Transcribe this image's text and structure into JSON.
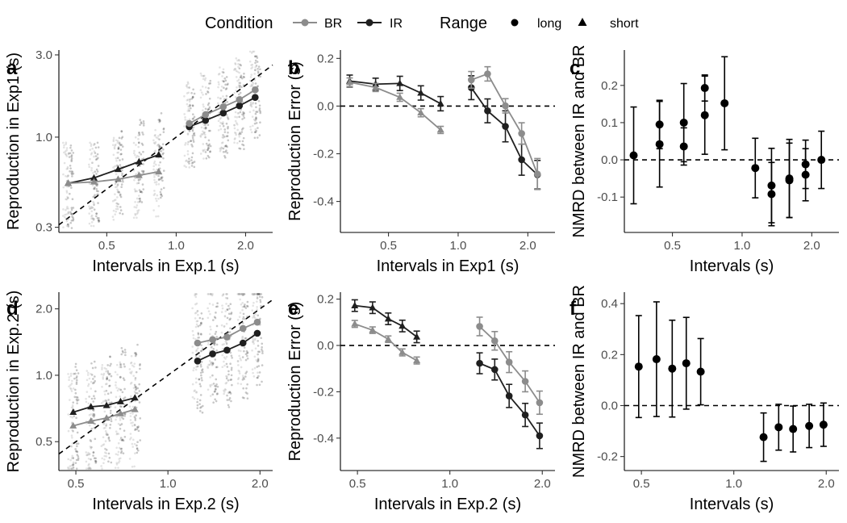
{
  "legend": {
    "condition_title": "Condition",
    "condition_items": [
      {
        "label": "BR",
        "color": "#8c8c8c"
      },
      {
        "label": "IR",
        "color": "#1f1f1f"
      }
    ],
    "range_title": "Range",
    "range_items": [
      {
        "label": "long",
        "shape": "circle"
      },
      {
        "label": "short",
        "shape": "triangle"
      }
    ]
  },
  "colors": {
    "BR": "#8c8c8c",
    "IR": "#1f1f1f",
    "raw": "#b3b3b3"
  },
  "chart_data": [
    {
      "id": "a",
      "letter": "a",
      "type": "scatter",
      "xlabel": "Intervals in Exp.1 (s)",
      "ylabel": "Reproduction in Exp1 (s)",
      "xscale": "log",
      "yscale": "log",
      "xlim": [
        0.31,
        2.62
      ],
      "ylim": [
        0.28,
        3.2
      ],
      "xticks": [
        {
          "v": 0.5,
          "label": "0.5"
        },
        {
          "v": 1.0,
          "label": "1.0"
        },
        {
          "v": 2.0,
          "label": "2.0"
        }
      ],
      "yticks": [
        {
          "v": 0.3,
          "label": "0.3"
        },
        {
          "v": 1.0,
          "label": "1.0"
        },
        {
          "v": 3.0,
          "label": "3.0"
        }
      ],
      "reference_line": "identity",
      "raw_spread": [
        0.55,
        1.75
      ],
      "series": [
        {
          "condition": "IR",
          "range": "short",
          "x": [
            0.34,
            0.44,
            0.56,
            0.69,
            0.84
          ],
          "y": [
            0.54,
            0.58,
            0.65,
            0.72,
            0.79
          ]
        },
        {
          "condition": "BR",
          "range": "short",
          "x": [
            0.34,
            0.44,
            0.56,
            0.69,
            0.84
          ],
          "y": [
            0.54,
            0.55,
            0.57,
            0.6,
            0.63
          ]
        },
        {
          "condition": "IR",
          "range": "long",
          "x": [
            1.14,
            1.34,
            1.6,
            1.88,
            2.2
          ],
          "y": [
            1.15,
            1.25,
            1.38,
            1.52,
            1.7
          ]
        },
        {
          "condition": "BR",
          "range": "long",
          "x": [
            1.14,
            1.34,
            1.6,
            1.88,
            2.2
          ],
          "y": [
            1.2,
            1.35,
            1.5,
            1.65,
            1.88
          ]
        }
      ]
    },
    {
      "id": "b",
      "letter": "b",
      "type": "line",
      "xlabel": "Intervals in Exp1 (s)",
      "ylabel": "Reproduction Error (s)",
      "xscale": "log",
      "yscale": "linear",
      "xlim": [
        0.31,
        2.62
      ],
      "ylim": [
        -0.53,
        0.235
      ],
      "xticks": [
        {
          "v": 0.5,
          "label": "0.5"
        },
        {
          "v": 1.0,
          "label": "1.0"
        },
        {
          "v": 2.0,
          "label": "2.0"
        }
      ],
      "yticks": [
        {
          "v": 0.2,
          "label": "0.2"
        },
        {
          "v": 0.0,
          "label": "0.0"
        },
        {
          "v": -0.2,
          "label": "-0.2"
        },
        {
          "v": -0.4,
          "label": "-0.4"
        }
      ],
      "reference_line": "zero",
      "series": [
        {
          "condition": "IR",
          "range": "short",
          "x": [
            0.34,
            0.44,
            0.56,
            0.69,
            0.84
          ],
          "y": [
            0.105,
            0.092,
            0.095,
            0.055,
            0.01
          ],
          "err": [
            0.025,
            0.025,
            0.03,
            0.03,
            0.03
          ]
        },
        {
          "condition": "BR",
          "range": "short",
          "x": [
            0.34,
            0.44,
            0.56,
            0.69,
            0.84
          ],
          "y": [
            0.1,
            0.078,
            0.037,
            -0.028,
            -0.1
          ],
          "err": [
            0.018,
            0.017,
            0.017,
            0.017,
            0.015
          ]
        },
        {
          "condition": "IR",
          "range": "long",
          "x": [
            1.14,
            1.34,
            1.6,
            1.88,
            2.2
          ],
          "y": [
            0.077,
            -0.02,
            -0.085,
            -0.225,
            -0.288
          ],
          "err": [
            0.05,
            0.05,
            0.065,
            0.065,
            0.06
          ]
        },
        {
          "condition": "BR",
          "range": "long",
          "x": [
            1.14,
            1.34,
            1.6,
            1.88,
            2.2
          ],
          "y": [
            0.11,
            0.135,
            0.001,
            -0.115,
            -0.285
          ],
          "err": [
            0.035,
            0.03,
            0.03,
            0.045,
            0.065
          ]
        }
      ]
    },
    {
      "id": "c",
      "letter": "c",
      "type": "scatter",
      "xlabel": "Intervals (s)",
      "ylabel": "NMRD between IR and BR",
      "xscale": "log",
      "yscale": "linear",
      "xlim": [
        0.31,
        2.62
      ],
      "ylim": [
        -0.195,
        0.295
      ],
      "xticks": [
        {
          "v": 0.5,
          "label": "0.5"
        },
        {
          "v": 1.0,
          "label": "1.0"
        },
        {
          "v": 2.0,
          "label": "2.0"
        }
      ],
      "yticks": [
        {
          "v": 0.2,
          "label": "0.2"
        },
        {
          "v": 0.1,
          "label": "0.1"
        },
        {
          "v": 0.0,
          "label": "0.0"
        },
        {
          "v": -0.1,
          "label": "-0.1"
        }
      ],
      "reference_line": "zero",
      "series": [
        {
          "condition": "NMRD",
          "x": [
            0.34,
            0.44,
            0.44,
            0.56,
            0.56,
            0.69,
            0.69,
            0.84,
            1.14,
            1.34,
            1.34,
            1.6,
            1.6,
            1.88,
            1.88,
            2.2
          ],
          "y": [
            0.012,
            0.095,
            0.042,
            0.1,
            0.036,
            0.193,
            0.12,
            0.152,
            -0.022,
            -0.069,
            -0.092,
            -0.05,
            -0.055,
            -0.012,
            -0.04,
            0.0
          ],
          "err": [
            0.13,
            0.065,
            0.115,
            0.105,
            0.05,
            0.035,
            0.105,
            0.125,
            0.08,
            0.1,
            0.085,
            0.105,
            0.1,
            0.065,
            0.07,
            0.077
          ]
        }
      ]
    },
    {
      "id": "d",
      "letter": "d",
      "type": "scatter",
      "xlabel": "Intervals in Exp.2 (s)",
      "ylabel": "Reproduction in Exp.2 (s)",
      "xscale": "log",
      "yscale": "log",
      "xlim": [
        0.44,
        2.2
      ],
      "ylim": [
        0.37,
        2.38
      ],
      "xticks": [
        {
          "v": 0.5,
          "label": "0.5"
        },
        {
          "v": 1.0,
          "label": "1.0"
        },
        {
          "v": 2.0,
          "label": "2.0"
        }
      ],
      "yticks": [
        {
          "v": 0.5,
          "label": "0.5"
        },
        {
          "v": 1.0,
          "label": "1.0"
        },
        {
          "v": 2.0,
          "label": "2.0"
        }
      ],
      "reference_line": "identity",
      "raw_spread": [
        0.55,
        1.75
      ],
      "series": [
        {
          "condition": "IR",
          "range": "short",
          "x": [
            0.49,
            0.56,
            0.63,
            0.7,
            0.78
          ],
          "y": [
            0.68,
            0.72,
            0.73,
            0.76,
            0.79
          ]
        },
        {
          "condition": "BR",
          "range": "short",
          "x": [
            0.49,
            0.56,
            0.63,
            0.7,
            0.78
          ],
          "y": [
            0.59,
            0.62,
            0.64,
            0.67,
            0.7
          ]
        },
        {
          "condition": "IR",
          "range": "long",
          "x": [
            1.25,
            1.4,
            1.56,
            1.76,
            1.96
          ],
          "y": [
            1.16,
            1.25,
            1.3,
            1.4,
            1.55
          ]
        },
        {
          "condition": "BR",
          "range": "long",
          "x": [
            1.25,
            1.4,
            1.56,
            1.76,
            1.96
          ],
          "y": [
            1.4,
            1.45,
            1.49,
            1.63,
            1.74
          ]
        }
      ]
    },
    {
      "id": "e",
      "letter": "e",
      "type": "line",
      "xlabel": "Intervals in Exp.2 (s)",
      "ylabel": "Reproduction Error (s)",
      "xscale": "log",
      "yscale": "linear",
      "xlim": [
        0.44,
        2.2
      ],
      "ylim": [
        -0.54,
        0.23
      ],
      "xticks": [
        {
          "v": 0.5,
          "label": "0.5"
        },
        {
          "v": 1.0,
          "label": "1.0"
        },
        {
          "v": 2.0,
          "label": "2.0"
        }
      ],
      "yticks": [
        {
          "v": 0.2,
          "label": "0.2"
        },
        {
          "v": 0.0,
          "label": "0.0"
        },
        {
          "v": -0.2,
          "label": "-0.2"
        },
        {
          "v": -0.4,
          "label": "-0.4"
        }
      ],
      "reference_line": "zero",
      "series": [
        {
          "condition": "IR",
          "range": "short",
          "x": [
            0.49,
            0.56,
            0.63,
            0.7,
            0.78
          ],
          "y": [
            0.172,
            0.163,
            0.115,
            0.084,
            0.037
          ],
          "err": [
            0.025,
            0.025,
            0.025,
            0.025,
            0.025
          ]
        },
        {
          "condition": "BR",
          "range": "short",
          "x": [
            0.49,
            0.56,
            0.63,
            0.7,
            0.78
          ],
          "y": [
            0.093,
            0.066,
            0.027,
            -0.03,
            -0.065
          ],
          "err": [
            0.015,
            0.014,
            0.014,
            0.015,
            0.015
          ]
        },
        {
          "condition": "IR",
          "range": "long",
          "x": [
            1.25,
            1.4,
            1.56,
            1.76,
            1.96
          ],
          "y": [
            -0.077,
            -0.104,
            -0.218,
            -0.3,
            -0.39
          ],
          "err": [
            0.045,
            0.045,
            0.05,
            0.05,
            0.055
          ]
        },
        {
          "condition": "BR",
          "range": "long",
          "x": [
            1.25,
            1.4,
            1.56,
            1.76,
            1.96
          ],
          "y": [
            0.082,
            0.02,
            -0.072,
            -0.155,
            -0.247
          ],
          "err": [
            0.04,
            0.04,
            0.045,
            0.045,
            0.05
          ]
        }
      ]
    },
    {
      "id": "f",
      "letter": "f",
      "type": "scatter",
      "xlabel": "Intervals (s)",
      "ylabel": "NMRD between IR and BR",
      "xscale": "log",
      "yscale": "linear",
      "xlim": [
        0.44,
        2.2
      ],
      "ylim": [
        -0.255,
        0.445
      ],
      "xticks": [
        {
          "v": 0.5,
          "label": "0.5"
        },
        {
          "v": 1.0,
          "label": "1.0"
        },
        {
          "v": 2.0,
          "label": "2.0"
        }
      ],
      "yticks": [
        {
          "v": 0.4,
          "label": "0.4"
        },
        {
          "v": 0.2,
          "label": "0.2"
        },
        {
          "v": 0.0,
          "label": "0.0"
        },
        {
          "v": -0.2,
          "label": "-0.2"
        }
      ],
      "reference_line": "zero",
      "series": [
        {
          "condition": "NMRD",
          "x": [
            0.49,
            0.56,
            0.63,
            0.7,
            0.78,
            1.25,
            1.4,
            1.56,
            1.76,
            1.96
          ],
          "y": [
            0.153,
            0.182,
            0.145,
            0.166,
            0.133,
            -0.124,
            -0.085,
            -0.092,
            -0.08,
            -0.075
          ],
          "err": [
            0.2,
            0.225,
            0.19,
            0.18,
            0.13,
            0.095,
            0.09,
            0.09,
            0.085,
            0.085
          ]
        }
      ]
    }
  ]
}
